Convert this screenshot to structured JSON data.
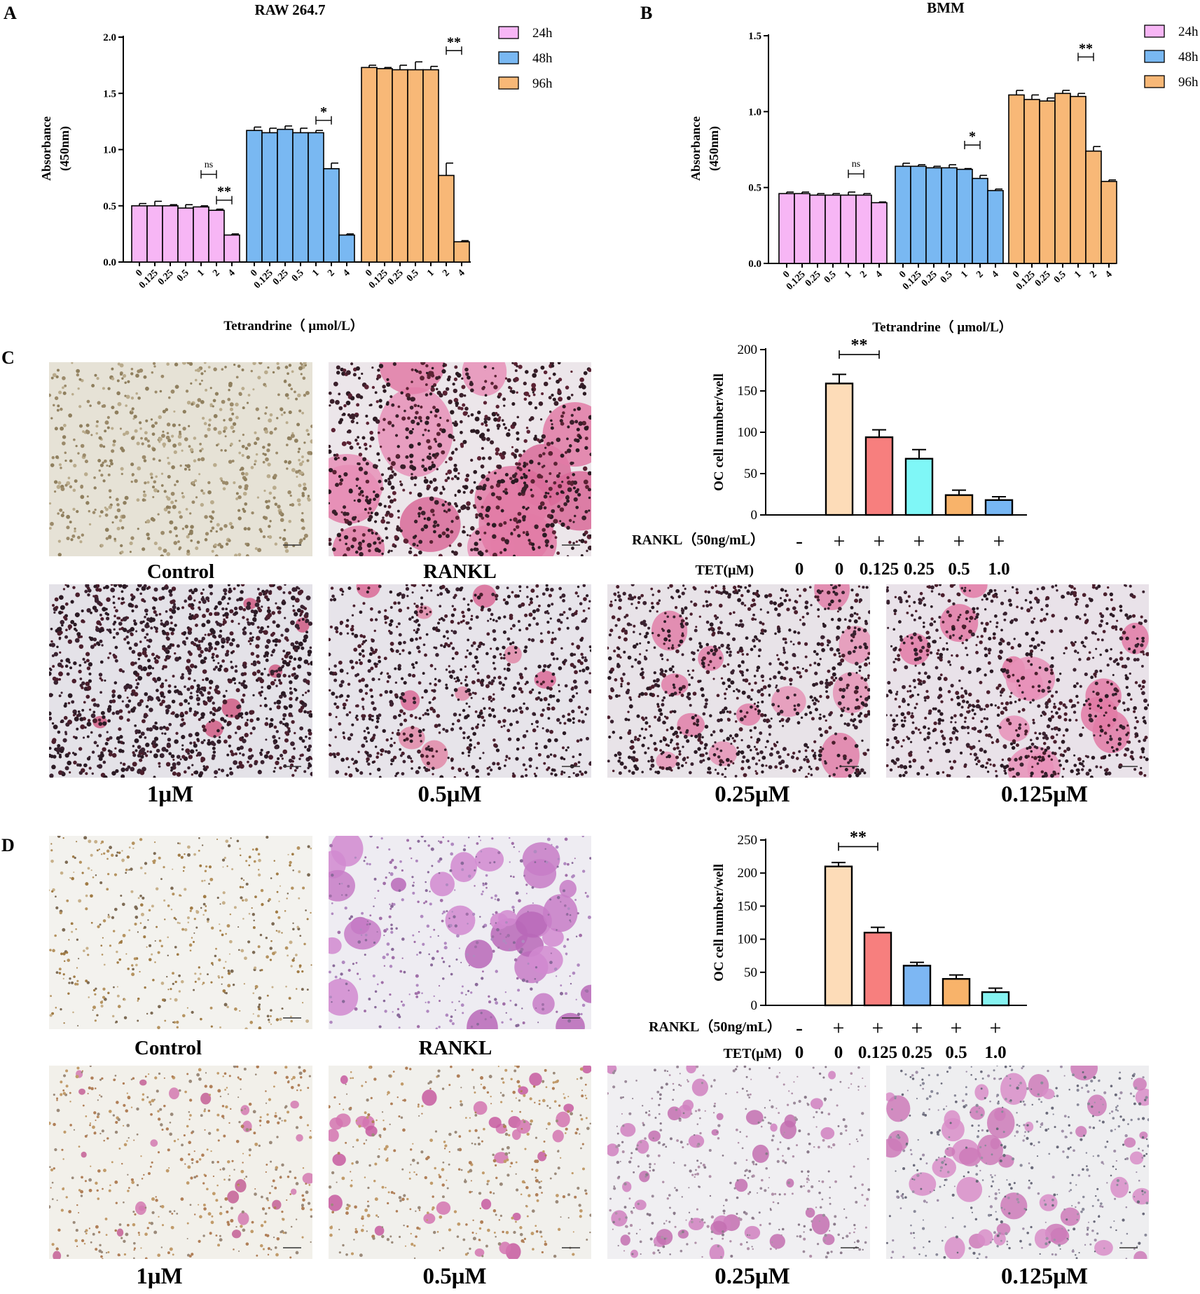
{
  "panels": {
    "a": {
      "letter": "A"
    },
    "b": {
      "letter": "B"
    },
    "c": {
      "letter": "C"
    },
    "d": {
      "letter": "D"
    }
  },
  "colors": {
    "h24": "#f7b6f5",
    "h48": "#79b8f2",
    "h96": "#f8b877",
    "oc_rankl": "#fddcb8",
    "oc_0125": "#f77f7e",
    "oc_025_c": "#7ff7f7",
    "oc_025_d": "#7db7f3",
    "oc_05": "#f8b36a",
    "oc_1_c": "#77b7f4",
    "oc_1_d": "#86f3f1"
  },
  "photos": {
    "c": {
      "top": [
        {
          "label": "Control",
          "tone": "control-brown"
        },
        {
          "label": "RANKL",
          "tone": "pink-large"
        }
      ],
      "bottom": [
        {
          "label": "1μM",
          "tone": "dark-dense"
        },
        {
          "label": "0.5μM",
          "tone": "dark-sparse"
        },
        {
          "label": "0.25μM",
          "tone": "dark-pink"
        },
        {
          "label": "0.125μM",
          "tone": "dark-pinker"
        }
      ]
    },
    "d": {
      "top": [
        {
          "label": "Control",
          "tone": "light-brown"
        },
        {
          "label": "RANKL",
          "tone": "purple-large"
        }
      ],
      "bottom": [
        {
          "label": "1μM",
          "tone": "light-few"
        },
        {
          "label": "0.5μM",
          "tone": "light-some"
        },
        {
          "label": "0.25μM",
          "tone": "light-more"
        },
        {
          "label": "0.125μM",
          "tone": "light-most"
        }
      ]
    }
  },
  "chart_data": [
    {
      "id": "A",
      "type": "bar",
      "title": "RAW 264.7",
      "ylabel": [
        "Absorbance",
        "(450nm)"
      ],
      "xlabel": "Tetrandrine（ μmol/L）",
      "ylim": [
        0,
        2.0
      ],
      "yticks": [
        "0.0",
        "0.5",
        "1.0",
        "1.5",
        "2.0"
      ],
      "categories": [
        "0",
        "0.125",
        "0.25",
        "0.5",
        "1",
        "2",
        "4"
      ],
      "series": [
        {
          "name": "24h",
          "color": "#f7b6f5",
          "values": [
            0.5,
            0.5,
            0.5,
            0.48,
            0.49,
            0.46,
            0.24
          ],
          "errors": [
            0.02,
            0.04,
            0.01,
            0.03,
            0.01,
            0.01,
            0.01
          ]
        },
        {
          "name": "48h",
          "color": "#79b8f2",
          "values": [
            1.17,
            1.15,
            1.18,
            1.15,
            1.15,
            0.83,
            0.24
          ],
          "errors": [
            0.03,
            0.04,
            0.03,
            0.04,
            0.02,
            0.05,
            0.01
          ]
        },
        {
          "name": "96h",
          "color": "#f8b877",
          "values": [
            1.73,
            1.72,
            1.71,
            1.71,
            1.71,
            0.77,
            0.18
          ],
          "errors": [
            0.02,
            0.01,
            0.04,
            0.07,
            0.03,
            0.11,
            0.01
          ]
        }
      ],
      "annotations": [
        {
          "series": 0,
          "from": 4,
          "to": 5,
          "text": "ns",
          "level": 0.78
        },
        {
          "series": 0,
          "from": 5,
          "to": 6,
          "text": "**",
          "level": 0.55
        },
        {
          "series": 1,
          "from": 4,
          "to": 5,
          "text": "*",
          "level": 1.26
        },
        {
          "series": 2,
          "from": 5,
          "to": 6,
          "text": "**",
          "level": 1.88
        }
      ]
    },
    {
      "id": "B",
      "type": "bar",
      "title": "BMM",
      "ylabel": [
        "Absorbance",
        "(450nm)"
      ],
      "xlabel": "Tetrandrine（ μmol/L）",
      "ylim": [
        0,
        1.5
      ],
      "yticks": [
        "0.0",
        "0.5",
        "1.0",
        "1.5"
      ],
      "categories": [
        "0",
        "0.125",
        "0.25",
        "0.5",
        "1",
        "2",
        "4"
      ],
      "series": [
        {
          "name": "24h",
          "color": "#f7b6f5",
          "values": [
            0.46,
            0.46,
            0.45,
            0.45,
            0.45,
            0.45,
            0.4
          ],
          "errors": [
            0.01,
            0.01,
            0.01,
            0.01,
            0.02,
            0.01,
            0.005
          ]
        },
        {
          "name": "48h",
          "color": "#79b8f2",
          "values": [
            0.64,
            0.64,
            0.63,
            0.63,
            0.62,
            0.56,
            0.48
          ],
          "errors": [
            0.02,
            0.01,
            0.01,
            0.02,
            0.005,
            0.02,
            0.01
          ]
        },
        {
          "name": "96h",
          "color": "#f8b877",
          "values": [
            1.11,
            1.08,
            1.07,
            1.12,
            1.1,
            0.74,
            0.54
          ],
          "errors": [
            0.03,
            0.03,
            0.02,
            0.02,
            0.02,
            0.03,
            0.01
          ]
        }
      ],
      "annotations": [
        {
          "series": 0,
          "from": 4,
          "to": 5,
          "text": "ns",
          "level": 0.59
        },
        {
          "series": 1,
          "from": 4,
          "to": 5,
          "text": "*",
          "level": 0.78
        },
        {
          "series": 2,
          "from": 4,
          "to": 5,
          "text": "**",
          "level": 1.36
        }
      ]
    },
    {
      "id": "C",
      "type": "bar",
      "ylabel": "OC cell number/well",
      "ylim": [
        0,
        200
      ],
      "yticks": [
        "0",
        "50",
        "100",
        "150",
        "200"
      ],
      "row_labels": [
        "RANKL（50ng/mL）",
        "TET(μM)"
      ],
      "rankl": [
        "-",
        "+",
        "+",
        "+",
        "+",
        "+"
      ],
      "tet": [
        "0",
        "0",
        "0.125",
        "0.25",
        "0.5",
        "1.0"
      ],
      "values": [
        0,
        159,
        94,
        68,
        24,
        18
      ],
      "errors": [
        0,
        11,
        9,
        11,
        6,
        4
      ],
      "colors": [
        "#ffffff",
        "#fddcb8",
        "#f77f7e",
        "#7ff7f7",
        "#f8b36a",
        "#77b7f4"
      ],
      "significance": {
        "from": 1,
        "to": 2,
        "text": "**",
        "level": 194
      }
    },
    {
      "id": "D",
      "type": "bar",
      "ylabel": "OC cell number/well",
      "ylim": [
        0,
        250
      ],
      "yticks": [
        "0",
        "50",
        "100",
        "150",
        "200",
        "250"
      ],
      "row_labels": [
        "RANKL（50ng/mL）",
        "TET(μM)"
      ],
      "rankl": [
        "-",
        "+",
        "+",
        "+",
        "+",
        "+"
      ],
      "tet": [
        "0",
        "0",
        "0.125",
        "0.25",
        "0.5",
        "1.0"
      ],
      "values": [
        0,
        210,
        110,
        60,
        40,
        20
      ],
      "errors": [
        0,
        6,
        8,
        5,
        6,
        6
      ],
      "colors": [
        "#ffffff",
        "#fddcb8",
        "#f77f7e",
        "#7db7f3",
        "#f8b36a",
        "#86f3f1"
      ],
      "significance": {
        "from": 1,
        "to": 2,
        "text": "**",
        "level": 240
      }
    }
  ]
}
